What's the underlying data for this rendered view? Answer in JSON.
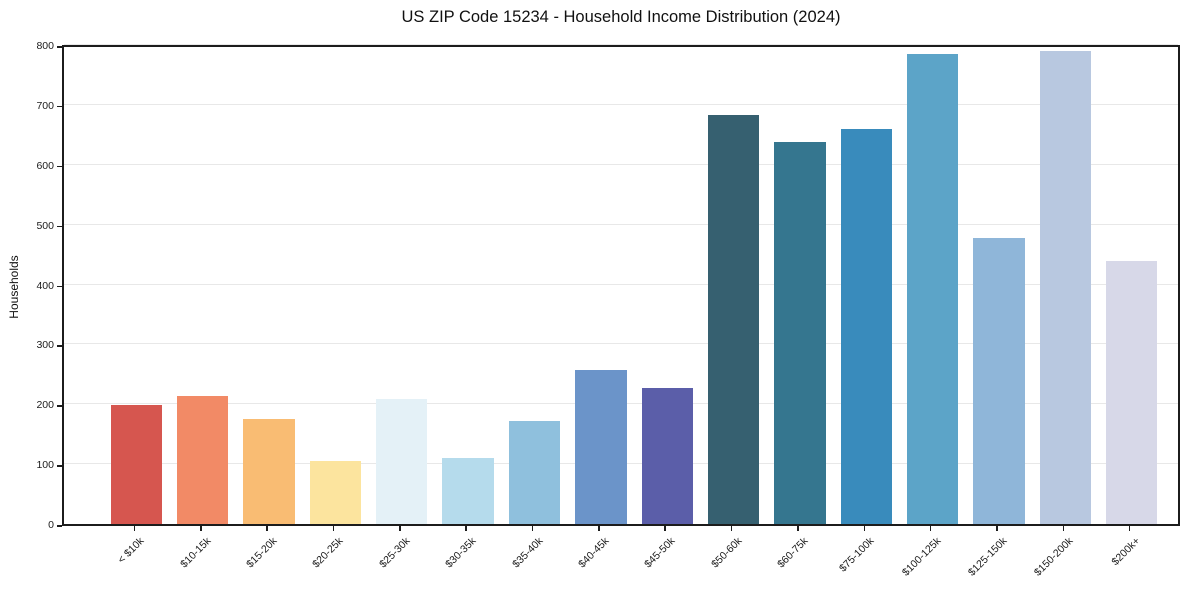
{
  "chart_data": {
    "type": "bar",
    "title": "US ZIP Code 15234 - Household Income Distribution (2024)",
    "xlabel": "",
    "ylabel": "Households",
    "ylim": [
      0,
      800
    ],
    "yticks": [
      0,
      100,
      200,
      300,
      400,
      500,
      600,
      700,
      800
    ],
    "grid": true,
    "legend_position": "none",
    "categories": [
      "< $10k",
      "$10-15k",
      "$15-20k",
      "$20-25k",
      "$25-30k",
      "$30-35k",
      "$35-40k",
      "$40-45k",
      "$45-50k",
      "$50-60k",
      "$60-75k",
      "$75-100k",
      "$100-125k",
      "$125-150k",
      "$150-200k",
      "$200k+"
    ],
    "values": [
      199,
      213,
      176,
      105,
      208,
      110,
      172,
      258,
      227,
      683,
      638,
      660,
      785,
      478,
      790,
      440
    ],
    "bar_colors": [
      "#d6564f",
      "#f28a66",
      "#f9bc73",
      "#fce49e",
      "#e4f1f7",
      "#b5dbec",
      "#8fc0dd",
      "#6b94c9",
      "#5b5ea9",
      "#366070",
      "#35768f",
      "#398bbc",
      "#5ca4c8",
      "#8fb6d9",
      "#b8c8e0",
      "#d7d8e8"
    ],
    "colors": {
      "grid": "#e8e8e8",
      "spine": "#1c1c1c",
      "text": "#111111",
      "background": "#ffffff"
    }
  }
}
